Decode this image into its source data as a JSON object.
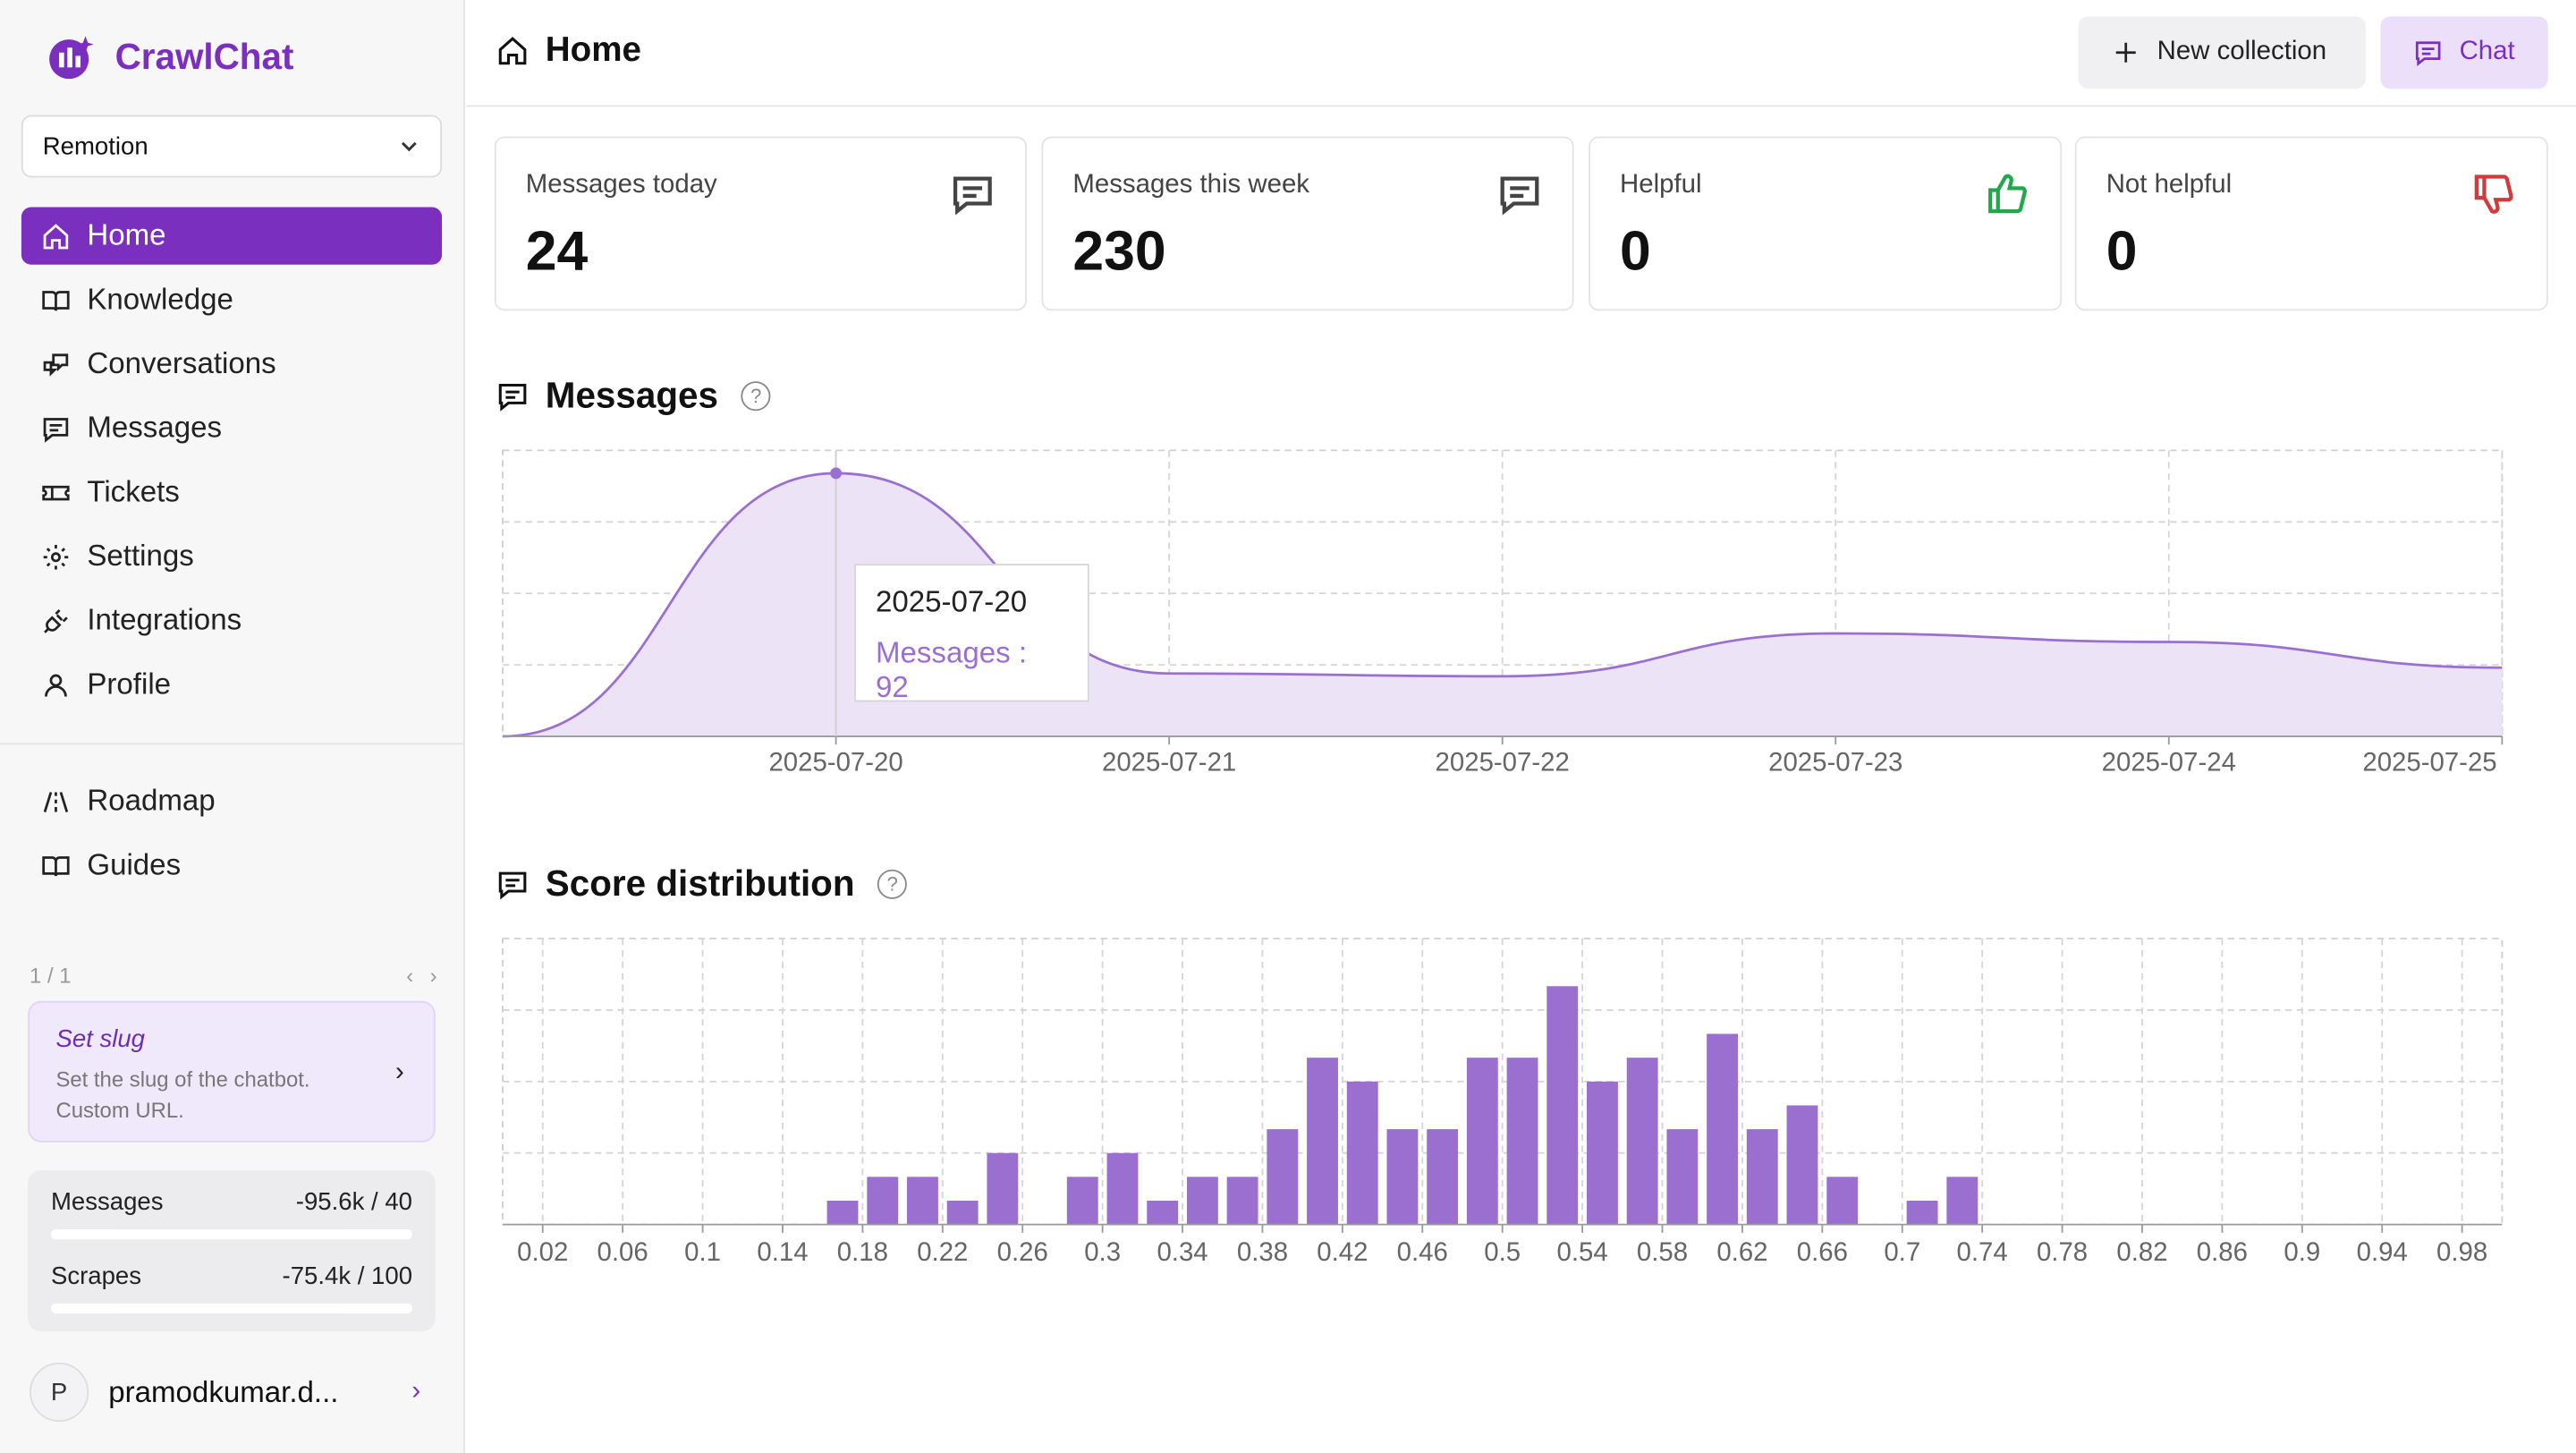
{
  "app": {
    "name": "CrawlChat"
  },
  "sidebar": {
    "collection": "Remotion",
    "nav": [
      {
        "label": "Home",
        "icon": "home-icon",
        "active": true
      },
      {
        "label": "Knowledge",
        "icon": "book-icon"
      },
      {
        "label": "Conversations",
        "icon": "conversations-icon"
      },
      {
        "label": "Messages",
        "icon": "message-icon"
      },
      {
        "label": "Tickets",
        "icon": "ticket-icon"
      },
      {
        "label": "Settings",
        "icon": "gear-icon"
      },
      {
        "label": "Integrations",
        "icon": "plug-icon"
      },
      {
        "label": "Profile",
        "icon": "user-icon"
      }
    ],
    "secondary": [
      {
        "label": "Roadmap",
        "icon": "roadmap-icon"
      },
      {
        "label": "Guides",
        "icon": "book-icon"
      }
    ],
    "pager": "1 / 1",
    "slug_card": {
      "title": "Set slug",
      "desc": "Set the slug of the chatbot. Custom URL."
    },
    "usage": [
      {
        "label": "Messages",
        "value": "-95.6k / 40",
        "fill": 0
      },
      {
        "label": "Scrapes",
        "value": "-75.4k / 100",
        "fill": 0
      }
    ],
    "user": {
      "initial": "P",
      "name": "pramodkumar.d..."
    }
  },
  "header": {
    "title": "Home",
    "new_collection": "New collection",
    "chat": "Chat"
  },
  "stats": [
    {
      "label": "Messages today",
      "value": "24",
      "icon": "message-icon"
    },
    {
      "label": "Messages this week",
      "value": "230",
      "icon": "message-icon"
    },
    {
      "label": "Helpful",
      "value": "0",
      "icon": "thumbs-up-icon",
      "color": "#22a84a"
    },
    {
      "label": "Not helpful",
      "value": "0",
      "icon": "thumbs-down-icon",
      "color": "#d23b3b"
    }
  ],
  "messages_section": {
    "title": "Messages"
  },
  "score_section": {
    "title": "Score distribution"
  },
  "tooltip": {
    "date": "2025-07-20",
    "text": "Messages : 92"
  },
  "chart_data": [
    {
      "type": "area",
      "title": "Messages",
      "x": [
        "2025-07-19",
        "2025-07-20",
        "2025-07-21",
        "2025-07-22",
        "2025-07-23",
        "2025-07-24",
        "2025-07-25"
      ],
      "series": [
        {
          "values": [
            0,
            92,
            22,
            21,
            36,
            33,
            24
          ]
        }
      ],
      "xticks": [
        "2025-07-20",
        "2025-07-21",
        "2025-07-22",
        "2025-07-23",
        "2025-07-24",
        "2025-07-25"
      ],
      "ylim": [
        0,
        100
      ],
      "grid": true,
      "color": "#9b6fd0"
    },
    {
      "type": "bar",
      "title": "Score distribution",
      "x": [
        0.0,
        0.02,
        0.04,
        0.06,
        0.08,
        0.1,
        0.12,
        0.14,
        0.16,
        0.18,
        0.2,
        0.22,
        0.24,
        0.26,
        0.28,
        0.3,
        0.32,
        0.34,
        0.36,
        0.38,
        0.4,
        0.42,
        0.44,
        0.46,
        0.48,
        0.5,
        0.52,
        0.54,
        0.56,
        0.58,
        0.6,
        0.62,
        0.64,
        0.66,
        0.68,
        0.7,
        0.72,
        0.74,
        0.76,
        0.78,
        0.8,
        0.82,
        0.84,
        0.86,
        0.88,
        0.9,
        0.92,
        0.94,
        0.96,
        0.98
      ],
      "values": [
        0,
        0,
        0,
        0,
        0,
        0,
        0,
        0,
        1,
        2,
        2,
        1,
        3,
        0,
        2,
        3,
        1,
        2,
        2,
        4,
        7,
        6,
        4,
        4,
        7,
        7,
        10,
        6,
        7,
        4,
        8,
        4,
        5,
        2,
        0,
        1,
        2,
        0,
        0,
        0,
        0,
        0,
        0,
        0,
        0,
        0,
        0,
        0,
        0,
        0
      ],
      "xticks": [
        "0.02",
        "0.06",
        "0.1",
        "0.14",
        "0.18",
        "0.22",
        "0.26",
        "0.3",
        "0.34",
        "0.38",
        "0.42",
        "0.46",
        "0.5",
        "0.54",
        "0.58",
        "0.62",
        "0.66",
        "0.7",
        "0.74",
        "0.78",
        "0.82",
        "0.86",
        "0.9",
        "0.94",
        "0.98"
      ],
      "ylim": [
        0,
        12
      ],
      "grid": true,
      "color": "#9b6fd0"
    }
  ]
}
